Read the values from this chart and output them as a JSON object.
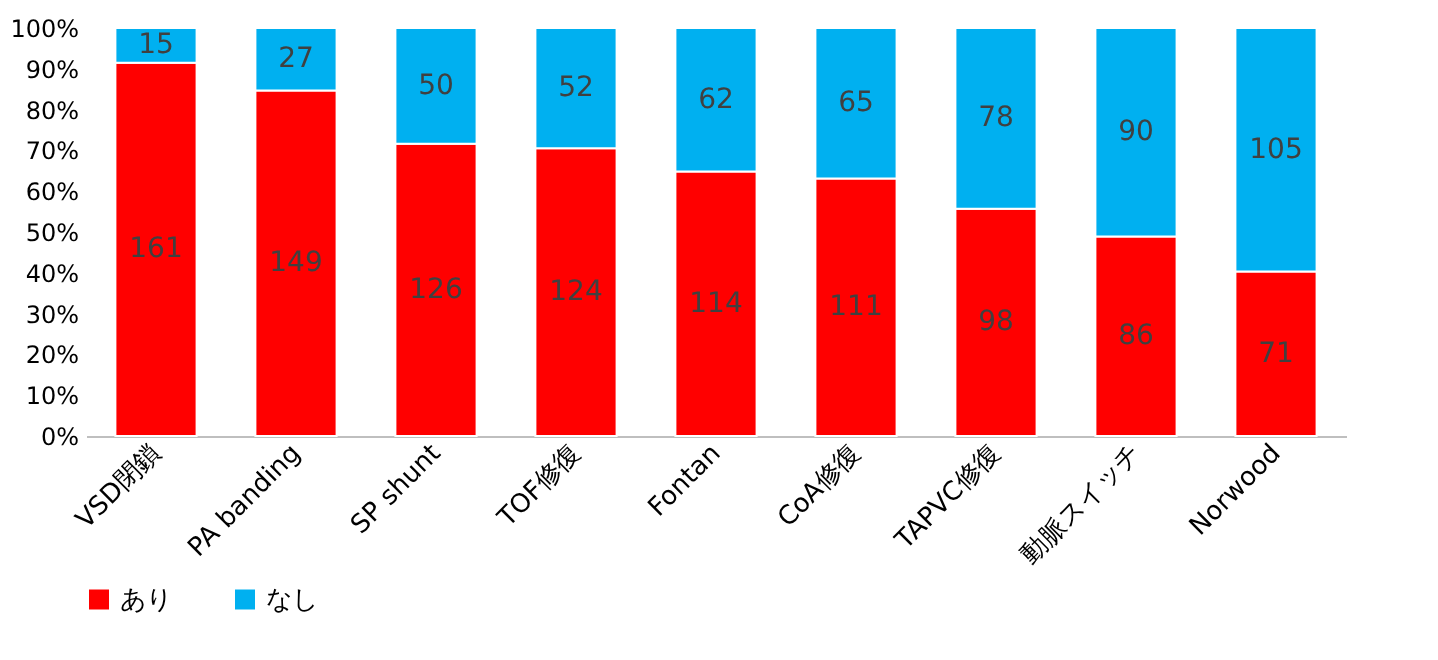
{
  "chart_data": {
    "type": "bar",
    "stacked": true,
    "categories": [
      "VSD閉鎖",
      "PA banding",
      "SP shunt",
      "TOF修復",
      "Fontan",
      "CoA修復",
      "TAPVC修復",
      "動脈スイッチ",
      "Norwood"
    ],
    "series": [
      {
        "name": "あり",
        "color": "#ff0000",
        "values": [
          91.5,
          84.7,
          71.6,
          70.5,
          64.8,
          63.1,
          55.7,
          48.9,
          40.3
        ]
      },
      {
        "name": "なし",
        "color": "#00b0f0",
        "values": [
          8.5,
          15.3,
          28.4,
          29.5,
          35.2,
          36.9,
          44.3,
          51.1,
          59.7
        ]
      }
    ],
    "annotations": [
      {
        "text": "161",
        "x": "VSD閉鎖",
        "y": 45.8
      },
      {
        "text": "149",
        "x": "PA banding",
        "y": 42.4
      },
      {
        "text": "126",
        "x": "SP shunt",
        "y": 35.8
      },
      {
        "text": "124",
        "x": "TOF修復",
        "y": 35.3
      },
      {
        "text": "114",
        "x": "Fontan",
        "y": 32.4
      },
      {
        "text": "111",
        "x": "CoA修復",
        "y": 31.6
      },
      {
        "text": "98",
        "x": "TAPVC修復",
        "y": 27.9
      },
      {
        "text": "86",
        "x": "動脈スイッチ",
        "y": 24.5
      },
      {
        "text": "71",
        "x": "Norwood",
        "y": 20.2
      },
      {
        "text": "15",
        "x": "VSD閉鎖",
        "y": 95.8
      },
      {
        "text": "27",
        "x": "PA banding",
        "y": 92.4
      },
      {
        "text": "50",
        "x": "SP shunt",
        "y": 85.8
      },
      {
        "text": "52",
        "x": "TOF修復",
        "y": 85.3
      },
      {
        "text": "62",
        "x": "Fontan",
        "y": 82.4
      },
      {
        "text": "65",
        "x": "CoA修復",
        "y": 81.6
      },
      {
        "text": "78",
        "x": "TAPVC修復",
        "y": 77.9
      },
      {
        "text": "90",
        "x": "動脈スイッチ",
        "y": 74.5
      },
      {
        "text": "105",
        "x": "Norwood",
        "y": 70.2
      }
    ],
    "ylim": [
      0,
      100
    ],
    "yticks": [
      {
        "value": 0,
        "label": "0%"
      },
      {
        "value": 10,
        "label": "10%"
      },
      {
        "value": 20,
        "label": "20%"
      },
      {
        "value": 30,
        "label": "30%"
      },
      {
        "value": 40,
        "label": "40%"
      },
      {
        "value": 50,
        "label": "50%"
      },
      {
        "value": 60,
        "label": "60%"
      },
      {
        "value": 70,
        "label": "70%"
      },
      {
        "value": 80,
        "label": "80%"
      },
      {
        "value": 90,
        "label": "90%"
      },
      {
        "value": 100,
        "label": "100%"
      }
    ],
    "legend": "bottom"
  }
}
